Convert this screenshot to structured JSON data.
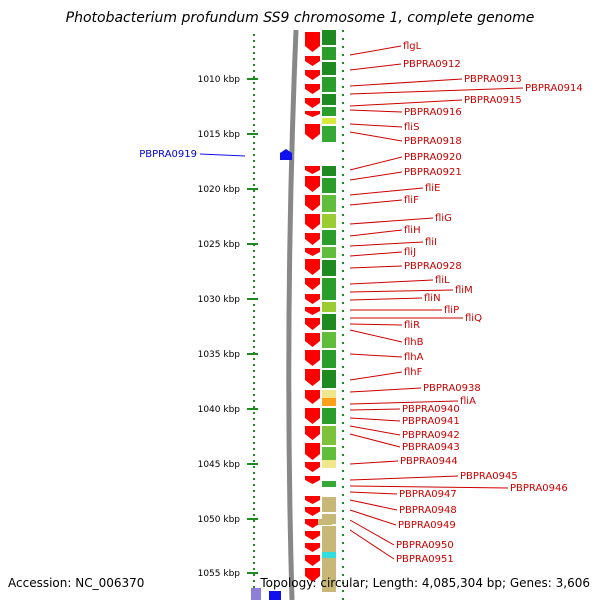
{
  "header": {
    "title": "Photobacterium profundum SS9 chromosome 1, complete genome"
  },
  "footer": {
    "accession": "Accession: NC_006370",
    "topology": "Topology: circular; Length: 4,085,304 bp; Genes: 3,606"
  },
  "colors": {
    "forward_gene": "#ff0000",
    "reverse_gene": "#1010ee",
    "label": "#cc0000",
    "backbone": "#888888",
    "track_green": "#1f8a1f"
  },
  "scale": {
    "unit": "kbp",
    "ticks": [
      "1010 kbp",
      "1015 kbp",
      "1020 kbp",
      "1025 kbp",
      "1030 kbp",
      "1035 kbp",
      "1040 kbp",
      "1045 kbp",
      "1050 kbp",
      "1055 kbp"
    ]
  },
  "left_labels": [
    "PBPRA0919"
  ],
  "right_labels": [
    "flgL",
    "PBPRA0912",
    "PBPRA0913",
    "PBPRA0914",
    "PBPRA0915",
    "PBPRA0916",
    "fliS",
    "PBPRA0918",
    "PBPRA0920",
    "PBPRA0921",
    "fliE",
    "fliF",
    "fliG",
    "fliH",
    "fliI",
    "fliJ",
    "PBPRA0928",
    "fliL",
    "fliM",
    "fliN",
    "fliP",
    "fliQ",
    "fliR",
    "flhB",
    "flhA",
    "flhF",
    "PBPRA0938",
    "fliA",
    "PBPRA0940",
    "PBPRA0941",
    "PBPRA0942",
    "PBPRA0943",
    "PBPRA0944",
    "PBPRA0945",
    "PBPRA0946",
    "PBPRA0947",
    "PBPRA0948",
    "PBPRA0949",
    "PBPRA0950",
    "PBPRA0951"
  ]
}
